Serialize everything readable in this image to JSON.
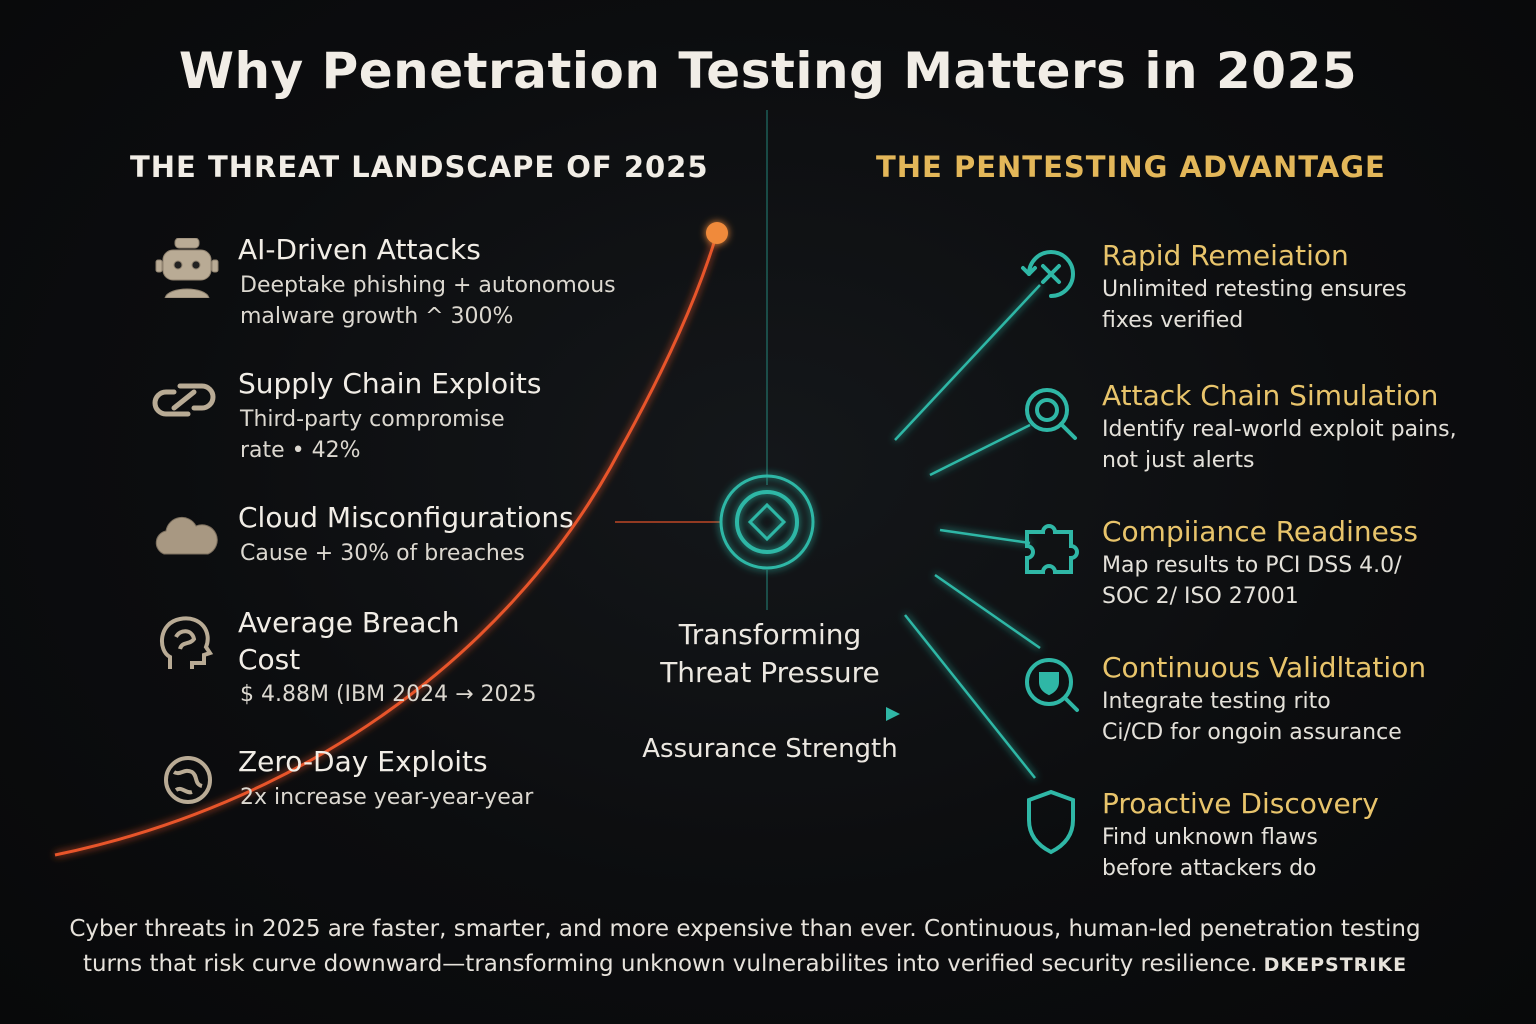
{
  "title": "Why Penetration Testing Matters in 2025",
  "left_heading": "THE THREAT LANDSCAPE OF 2025",
  "right_heading": "THE PENTESTING ADVANTAGE",
  "threats": [
    {
      "icon": "robot-icon",
      "title": "AI-Driven Attacks",
      "desc1": "Deeptake phishing + autonomous",
      "desc2": "malware growth ^ 300%"
    },
    {
      "icon": "chain-link-icon",
      "title": "Supply Chain Exploits",
      "desc1": "Third-party compromise",
      "desc2": "rate • 42%"
    },
    {
      "icon": "cloud-icon",
      "title": "Cloud Misconfigurations",
      "desc1": "Cause + 30% of breaches",
      "desc2": ""
    },
    {
      "icon": "head-icon",
      "title_line1": "Average Breach",
      "title_line2": "Cost",
      "desc1": "$ 4.88M (IBM 2024 → 2025",
      "desc2": ""
    },
    {
      "icon": "globe-bug-icon",
      "title": "Zero-Day Exploits",
      "desc1": "2x increase year-year-year",
      "desc2": ""
    }
  ],
  "advantages": [
    {
      "icon": "cycle-x-icon",
      "title": "Rapid Remeiation",
      "desc1": "Unlimited retesting ensures",
      "desc2": "fixes verified"
    },
    {
      "icon": "magnifier-icon",
      "title": "Attack Chain Simulation",
      "desc1": "Identify real-world exploit pains,",
      "desc2": "not just alerts"
    },
    {
      "icon": "puzzle-icon",
      "title": "Compiiance Readiness",
      "desc1": "Map results to PCI DSS 4.0/",
      "desc2": "SOC 2/ ISO 27001"
    },
    {
      "icon": "shield-magnifier-icon",
      "title": "Continuous Validltation",
      "desc1": "Integrate testing rito",
      "desc2": "Ci/CD for ongoin assurance"
    },
    {
      "icon": "shield-icon",
      "title": "Proactive Discovery",
      "desc1": "Find unknown flaws",
      "desc2": "before attackers do"
    }
  ],
  "center": {
    "label_line1": "Transforming",
    "label_line2": "Threat Pressure",
    "arrow_label": "Assurance Strength"
  },
  "footer": {
    "line1": "Cyber threats in 2025 are faster, smarter, and more expensive than ever. Continuous, human-led penetration testing",
    "line2": "turns that risk curve downward—transforming unknown vulnerabilites into verified security resilience.",
    "brand": "DKEPSTRIKE"
  },
  "colors": {
    "threat_curve": "#e8542a",
    "teal": "#2fb7a6",
    "gold": "#e8c46b"
  }
}
